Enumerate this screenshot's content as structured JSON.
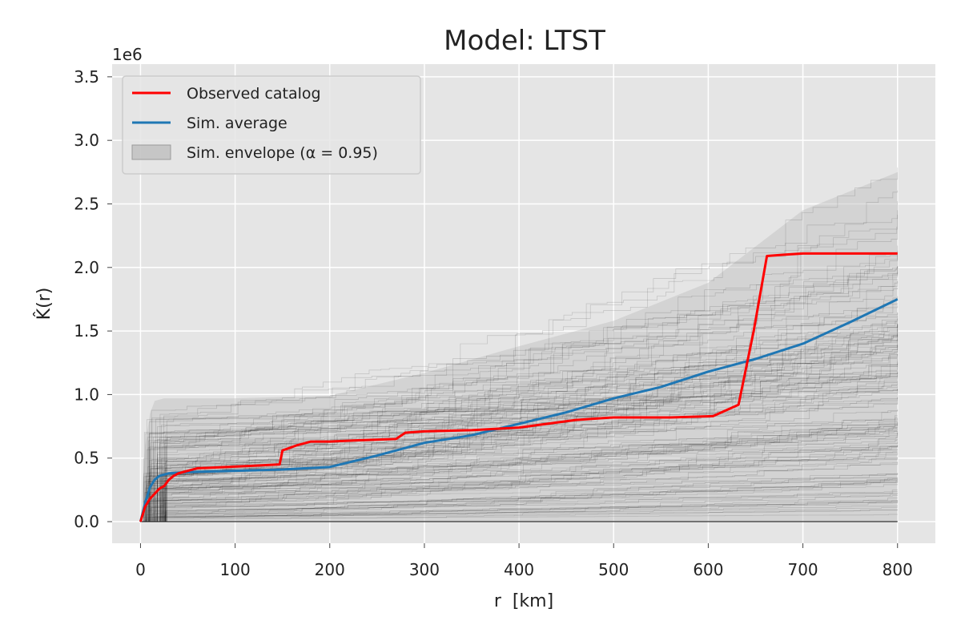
{
  "chart_data": {
    "type": "line",
    "title": "Model: LTST",
    "xlabel": "r  [km]",
    "ylabel": "K̂(r)",
    "y_offset_text": "1e6",
    "xlim": [
      -30,
      840
    ],
    "ylim": [
      -0.17,
      3.6
    ],
    "x_ticks": [
      0,
      100,
      200,
      300,
      400,
      500,
      600,
      700,
      800
    ],
    "x_tick_labels": [
      "0",
      "100",
      "200",
      "300",
      "400",
      "500",
      "600",
      "700",
      "800"
    ],
    "y_ticks": [
      0.0,
      0.5,
      1.0,
      1.5,
      2.0,
      2.5,
      3.0,
      3.5
    ],
    "y_tick_labels": [
      "0.0",
      "0.5",
      "1.0",
      "1.5",
      "2.0",
      "2.5",
      "3.0",
      "3.5"
    ],
    "grid": true,
    "legend_position": "top-left",
    "legend": [
      {
        "label": "Observed catalog",
        "kind": "line",
        "color": "#ff0000"
      },
      {
        "label": "Sim. average",
        "kind": "line",
        "color": "#1f77b4"
      },
      {
        "label": "Sim. envelope (α = 0.95)",
        "kind": "patch",
        "color": "#a0a0a0"
      }
    ],
    "series": [
      {
        "name": "Observed catalog",
        "color": "#ff0000",
        "x": [
          0,
          5,
          10,
          15,
          20,
          25,
          30,
          35,
          40,
          60,
          90,
          120,
          147,
          150,
          165,
          180,
          200,
          230,
          270,
          280,
          300,
          350,
          400,
          430,
          460,
          500,
          560,
          605,
          632,
          648,
          662,
          680,
          700,
          800
        ],
        "y": [
          0.0,
          0.12,
          0.18,
          0.22,
          0.26,
          0.28,
          0.33,
          0.36,
          0.38,
          0.42,
          0.43,
          0.44,
          0.45,
          0.56,
          0.6,
          0.63,
          0.63,
          0.64,
          0.65,
          0.7,
          0.71,
          0.72,
          0.74,
          0.77,
          0.8,
          0.82,
          0.82,
          0.83,
          0.92,
          1.5,
          2.09,
          2.1,
          2.11,
          2.11
        ]
      },
      {
        "name": "Sim. average",
        "color": "#1f77b4",
        "x": [
          0,
          5,
          10,
          15,
          20,
          25,
          30,
          50,
          100,
          150,
          200,
          250,
          300,
          350,
          400,
          450,
          500,
          550,
          600,
          650,
          700,
          750,
          800
        ],
        "y": [
          0.0,
          0.15,
          0.27,
          0.33,
          0.36,
          0.37,
          0.38,
          0.39,
          0.4,
          0.41,
          0.43,
          0.52,
          0.62,
          0.68,
          0.77,
          0.86,
          0.97,
          1.06,
          1.18,
          1.28,
          1.4,
          1.57,
          1.75
        ]
      }
    ],
    "envelope": {
      "name": "Sim. envelope (α = 0.95)",
      "x": [
        0,
        5,
        10,
        15,
        25,
        50,
        100,
        200,
        300,
        400,
        500,
        600,
        700,
        800
      ],
      "lower": [
        0,
        0,
        0,
        0,
        0,
        0,
        0,
        0,
        0,
        0,
        0,
        0,
        0,
        0
      ],
      "upper": [
        0,
        0.6,
        0.85,
        0.95,
        0.97,
        0.97,
        0.97,
        0.99,
        1.17,
        1.38,
        1.58,
        1.88,
        2.45,
        2.75
      ]
    },
    "simulation_trajectories": {
      "count": 160,
      "color": "#000000"
    }
  }
}
